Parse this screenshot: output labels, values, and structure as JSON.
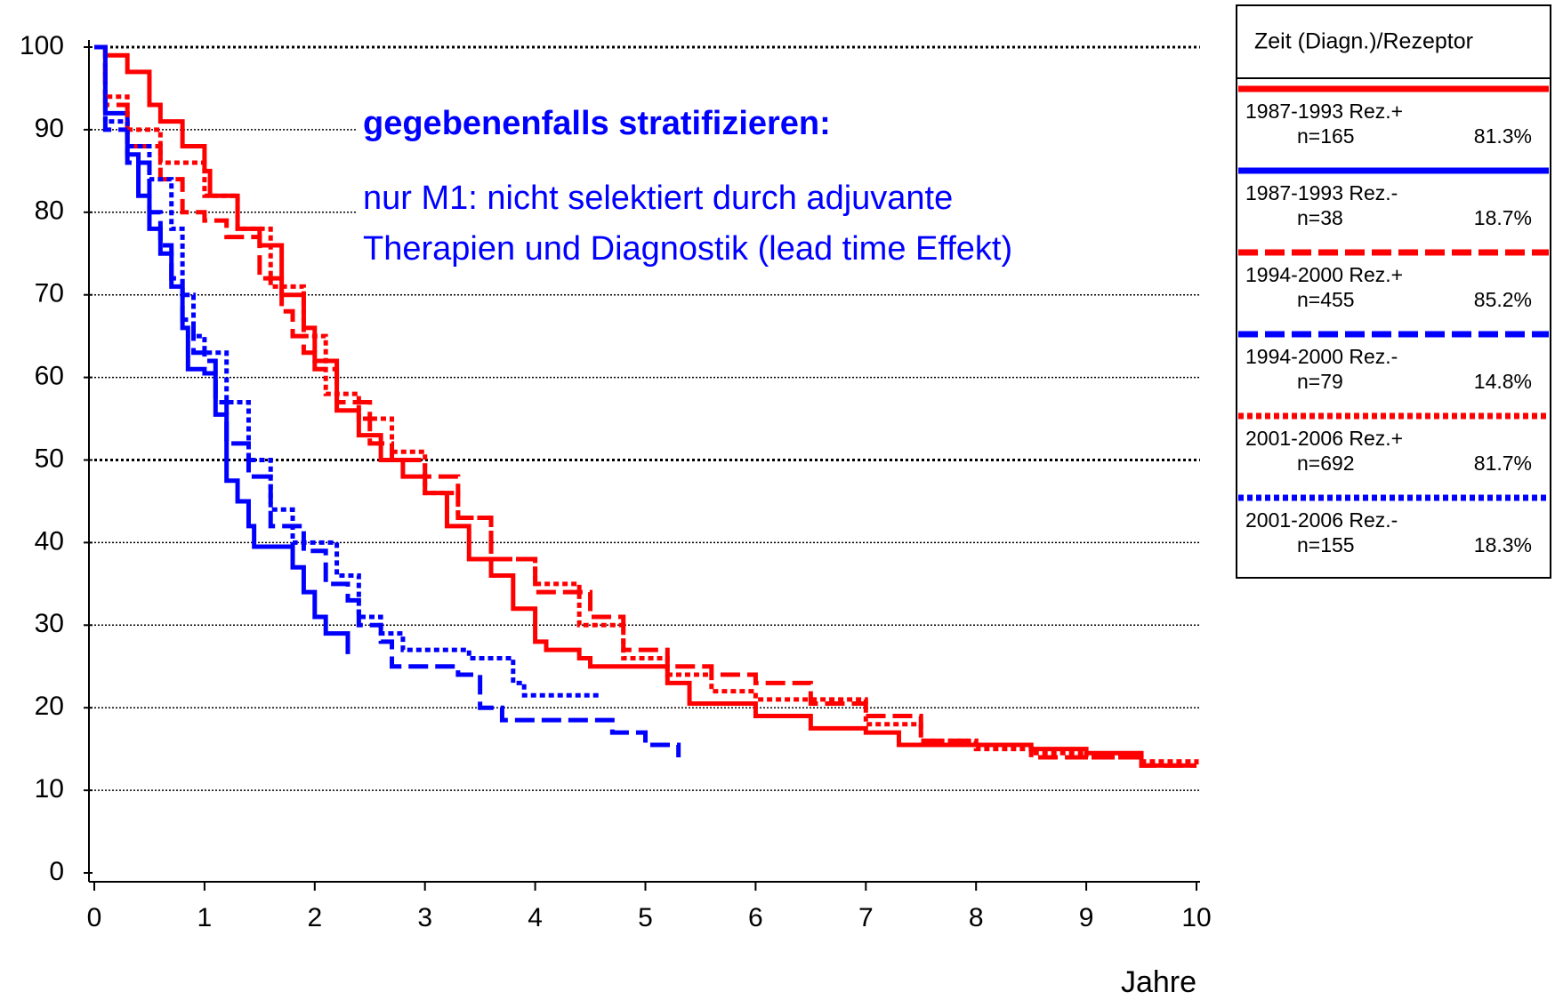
{
  "chart_data": {
    "type": "line",
    "step": true,
    "xlabel": "Jahre",
    "annotations": [
      "gegebenenfalls stratifizieren:",
      "nur M1: nicht selektiert durch adjuvante",
      "Therapien und Diagnostik (lead time Effekt)"
    ],
    "legend_title": "Zeit (Diagn.)/Rezeptor",
    "legend_position": "right",
    "xlim": [
      0,
      10
    ],
    "xticks": [
      0,
      1,
      2,
      3,
      4,
      5,
      6,
      7,
      8,
      9,
      10
    ],
    "ylim": [
      0,
      100
    ],
    "yticks": [
      0,
      10,
      20,
      30,
      40,
      50,
      60,
      70,
      80,
      90,
      100
    ],
    "grid": true,
    "series": [
      {
        "name": "1987-1993 Rez.+",
        "n": "n=165",
        "share": "81.3%",
        "color": "#ff0000",
        "dash": "solid",
        "x": [
          0,
          0.1,
          0.3,
          0.5,
          0.6,
          0.8,
          1,
          1.05,
          1.3,
          1.5,
          1.7,
          1.9,
          2,
          2.2,
          2.4,
          2.6,
          2.8,
          3,
          3.2,
          3.4,
          3.6,
          3.8,
          4,
          4.1,
          4.4,
          4.5,
          4.9,
          5.2,
          5.4,
          5.9,
          6,
          6.5,
          7,
          7.3,
          8,
          8.5,
          9,
          9.5,
          10
        ],
        "values": [
          100,
          99,
          97,
          93,
          91,
          88,
          85,
          82,
          78,
          76,
          70,
          66,
          62,
          56,
          53,
          50,
          48,
          46,
          42,
          38,
          36,
          32,
          28,
          27,
          26,
          25,
          25,
          23,
          20.5,
          20.5,
          19,
          17.5,
          17,
          15.5,
          15.5,
          15,
          14.5,
          13,
          13
        ]
      },
      {
        "name": "1987-1993 Rez.-",
        "n": "n=38",
        "share": "18.7%",
        "color": "#0000ff",
        "dash": "solid",
        "x": [
          0,
          0.1,
          0.3,
          0.4,
          0.5,
          0.6,
          0.7,
          0.8,
          0.85,
          1,
          1.1,
          1.2,
          1.3,
          1.4,
          1.45,
          1.8,
          1.9,
          2,
          2.1,
          2.3
        ],
        "values": [
          100,
          92,
          87,
          82,
          78,
          75,
          71,
          66,
          61,
          60.5,
          55.5,
          47.5,
          45,
          42,
          39.5,
          37,
          34,
          31,
          29,
          26.5
        ]
      },
      {
        "name": "1994-2000 Rez.+",
        "n": "n=455",
        "share": "85.2%",
        "color": "#ff0000",
        "dash": "dashed",
        "x": [
          0,
          0.1,
          0.3,
          0.6,
          0.8,
          1,
          1.2,
          1.5,
          1.7,
          1.8,
          1.9,
          2,
          2.2,
          2.5,
          2.7,
          3,
          3.3,
          3.6,
          4,
          4.5,
          4.8,
          5.2,
          5.6,
          6,
          6.5,
          7,
          7.5,
          8,
          8.5,
          9,
          9.5,
          10
        ],
        "values": [
          100,
          93,
          88,
          84,
          80,
          79,
          77,
          72,
          68,
          65,
          63,
          61,
          57,
          52,
          50,
          48,
          43,
          38,
          34,
          31,
          27,
          25,
          24,
          23,
          20.5,
          19,
          16,
          15.5,
          14,
          14,
          13,
          13
        ]
      },
      {
        "name": "1994-2000 Rez.-",
        "n": "n=79",
        "share": "14.8%",
        "color": "#0000ff",
        "dash": "dashed",
        "x": [
          0,
          0.1,
          0.3,
          0.5,
          0.6,
          0.7,
          0.8,
          0.9,
          1,
          1.1,
          1.2,
          1.4,
          1.6,
          1.9,
          2.1,
          2.3,
          2.4,
          2.6,
          2.7,
          3.3,
          3.5,
          3.7,
          4.5,
          4.7,
          5,
          5.3
        ],
        "values": [
          100,
          90,
          86,
          80,
          76,
          72,
          67,
          63,
          62,
          57,
          52,
          48,
          42,
          39,
          35,
          33,
          30,
          28,
          25,
          24,
          20,
          18.5,
          18.5,
          17,
          15.5,
          14
        ]
      },
      {
        "name": "2001-2006 Rez.+",
        "n": "n=692",
        "share": "81.7%",
        "color": "#ff0000",
        "dash": "dotted",
        "x": [
          0,
          0.1,
          0.3,
          0.6,
          1,
          1.3,
          1.6,
          1.9,
          2.1,
          2.4,
          2.7,
          3,
          3.3,
          3.6,
          4,
          4.4,
          4.8,
          5.2,
          5.6,
          6,
          7,
          7.5,
          8,
          8.5,
          9,
          9.5,
          10
        ],
        "values": [
          100,
          94,
          90,
          86,
          82,
          78,
          71,
          65,
          58,
          55,
          51,
          46,
          43,
          38,
          35,
          30,
          26,
          24,
          22,
          21,
          18,
          16,
          15,
          14.5,
          14,
          13.5,
          13
        ]
      },
      {
        "name": "2001-2006 Rez.-",
        "n": "n=155",
        "share": "18.3%",
        "color": "#0000ff",
        "dash": "dotted",
        "x": [
          0,
          0.1,
          0.3,
          0.5,
          0.7,
          0.8,
          0.9,
          1,
          1.2,
          1.4,
          1.6,
          1.8,
          2.2,
          2.4,
          2.6,
          2.8,
          3.4,
          3.8,
          3.9,
          4.6
        ],
        "values": [
          100,
          91,
          88,
          84,
          78,
          70,
          65,
          63,
          57,
          50,
          44,
          40,
          36,
          31,
          29,
          27,
          26,
          23,
          21.5,
          21.5
        ]
      }
    ]
  }
}
